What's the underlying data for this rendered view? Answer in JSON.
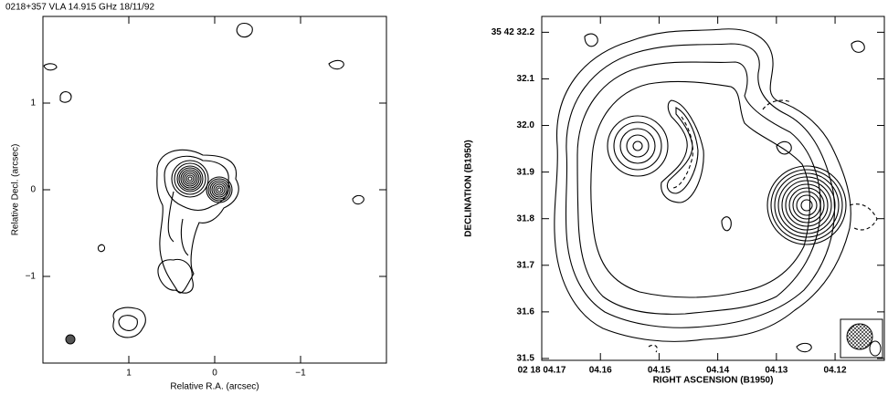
{
  "charts": [
    {
      "type": "contour",
      "title": "0218+357   VLA   14.915 GHz   18/11/92",
      "xlabel": "Relative R.A. (arcsec)",
      "ylabel": "Relative Decl. (arcsec)",
      "xlim": [
        2,
        -2
      ],
      "ylim": [
        -2,
        2
      ],
      "xticks": [
        1,
        0,
        {
          "value": -1,
          "label": "−1"
        }
      ],
      "yticks": [
        1,
        0,
        {
          "value": -1,
          "label": "−1"
        }
      ]
    },
    {
      "type": "contour",
      "xlabel": "RIGHT ASCENSION (B1950)",
      "ylabel": "DECLINATION (B1950)",
      "xlim": [
        4.17,
        4.1116
      ],
      "ylim": [
        31.496,
        32.234
      ],
      "xticks": [
        {
          "value": 4.17,
          "label": "02 18 04.17"
        },
        {
          "value": 4.16,
          "label": "04.16"
        },
        {
          "value": 4.15,
          "label": "04.15"
        },
        {
          "value": 4.14,
          "label": "04.14"
        },
        {
          "value": 4.13,
          "label": "04.13"
        },
        {
          "value": 4.12,
          "label": "04.12"
        }
      ],
      "yticks": [
        {
          "value": 32.2,
          "label": "35 42 32.2"
        },
        32.1,
        {
          "value": 32.0,
          "label": "32.0"
        },
        31.9,
        31.8,
        31.7,
        31.6,
        31.5
      ]
    }
  ]
}
